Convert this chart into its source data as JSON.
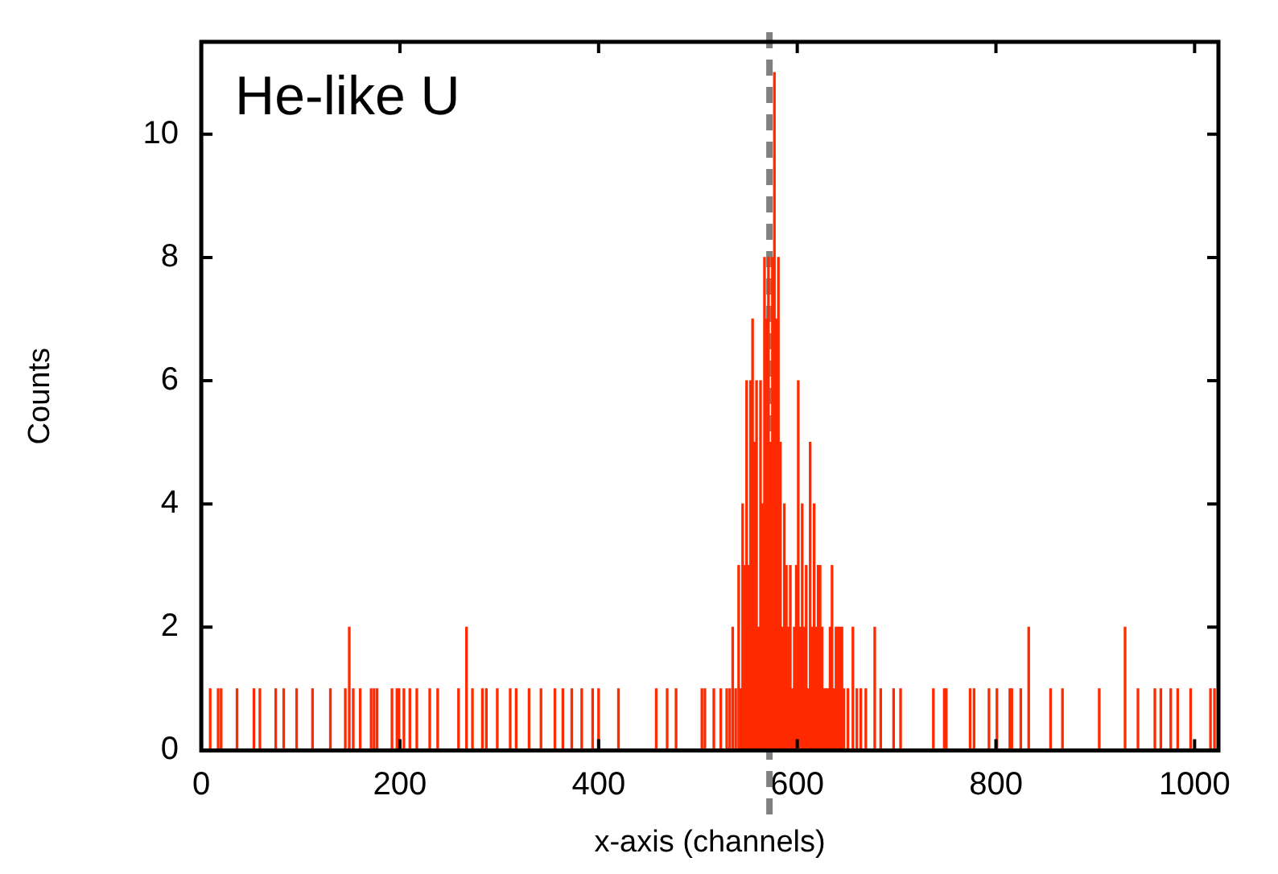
{
  "chart_data": {
    "type": "bar",
    "xlabel": "x-axis (channels)",
    "ylabel": "Counts",
    "annotations": [
      "He-like U"
    ],
    "xlim": [
      0,
      1024
    ],
    "xticks": [
      0,
      200,
      400,
      600,
      800,
      1000
    ],
    "ylim": [
      0,
      11.5
    ],
    "yticks": [
      0,
      2,
      4,
      6,
      8,
      10
    ],
    "grid": false,
    "legend": false,
    "ref_lines": [
      {
        "axis": "x",
        "value": 572,
        "color": "#808080",
        "line_style": "dashed"
      }
    ],
    "series": [
      {
        "color": "#ff2a00",
        "x": [
          9,
          17,
          20,
          36,
          53,
          59,
          75,
          83,
          96,
          112,
          130,
          145,
          149,
          153,
          160,
          171,
          174,
          177,
          192,
          197,
          199,
          204,
          210,
          217,
          230,
          238,
          259,
          267,
          273,
          283,
          287,
          298,
          311,
          317,
          330,
          342,
          356,
          364,
          373,
          383,
          394,
          400,
          420,
          458,
          469,
          478,
          504,
          507,
          516,
          523,
          529,
          532,
          535,
          538,
          541,
          543,
          545,
          547,
          549,
          551,
          553,
          555,
          557,
          559,
          561,
          563,
          565,
          567,
          569,
          571,
          573,
          575,
          577,
          579,
          581,
          583,
          585,
          587,
          589,
          591,
          593,
          595,
          597,
          599,
          601,
          603,
          605,
          607,
          609,
          611,
          613,
          615,
          617,
          619,
          621,
          623,
          625,
          627,
          629,
          631,
          633,
          635,
          637,
          639,
          641,
          643,
          645,
          647,
          651,
          656,
          660,
          664,
          669,
          678,
          684,
          697,
          704,
          737,
          748,
          750,
          774,
          778,
          793,
          801,
          814,
          816,
          825,
          833,
          855,
          867,
          904,
          930,
          943,
          960,
          966,
          976,
          983,
          996,
          1016,
          1020
        ],
        "values": [
          1,
          1,
          1,
          1,
          1,
          1,
          1,
          1,
          1,
          1,
          1,
          1,
          2,
          1,
          1,
          1,
          1,
          1,
          1,
          1,
          1,
          1,
          1,
          1,
          1,
          1,
          1,
          2,
          1,
          1,
          1,
          1,
          1,
          1,
          1,
          1,
          1,
          1,
          1,
          1,
          1,
          1,
          1,
          1,
          1,
          1,
          1,
          1,
          1,
          1,
          1,
          1,
          2,
          1,
          3,
          1,
          4,
          3,
          6,
          3,
          6,
          7,
          5,
          6,
          2,
          6,
          4,
          8,
          7,
          8,
          5,
          8,
          11,
          7,
          8,
          5,
          2,
          4,
          3,
          2,
          3,
          1,
          2,
          3,
          6,
          2,
          4,
          2,
          3,
          1,
          5,
          2,
          4,
          2,
          3,
          3,
          2,
          1,
          1,
          1,
          2,
          3,
          1,
          2,
          2,
          2,
          2,
          1,
          1,
          2,
          1,
          1,
          1,
          2,
          1,
          1,
          1,
          1,
          1,
          1,
          1,
          1,
          1,
          1,
          1,
          1,
          1,
          2,
          1,
          1,
          1,
          2,
          1,
          1,
          1,
          1,
          1,
          1,
          1,
          1
        ]
      }
    ]
  }
}
